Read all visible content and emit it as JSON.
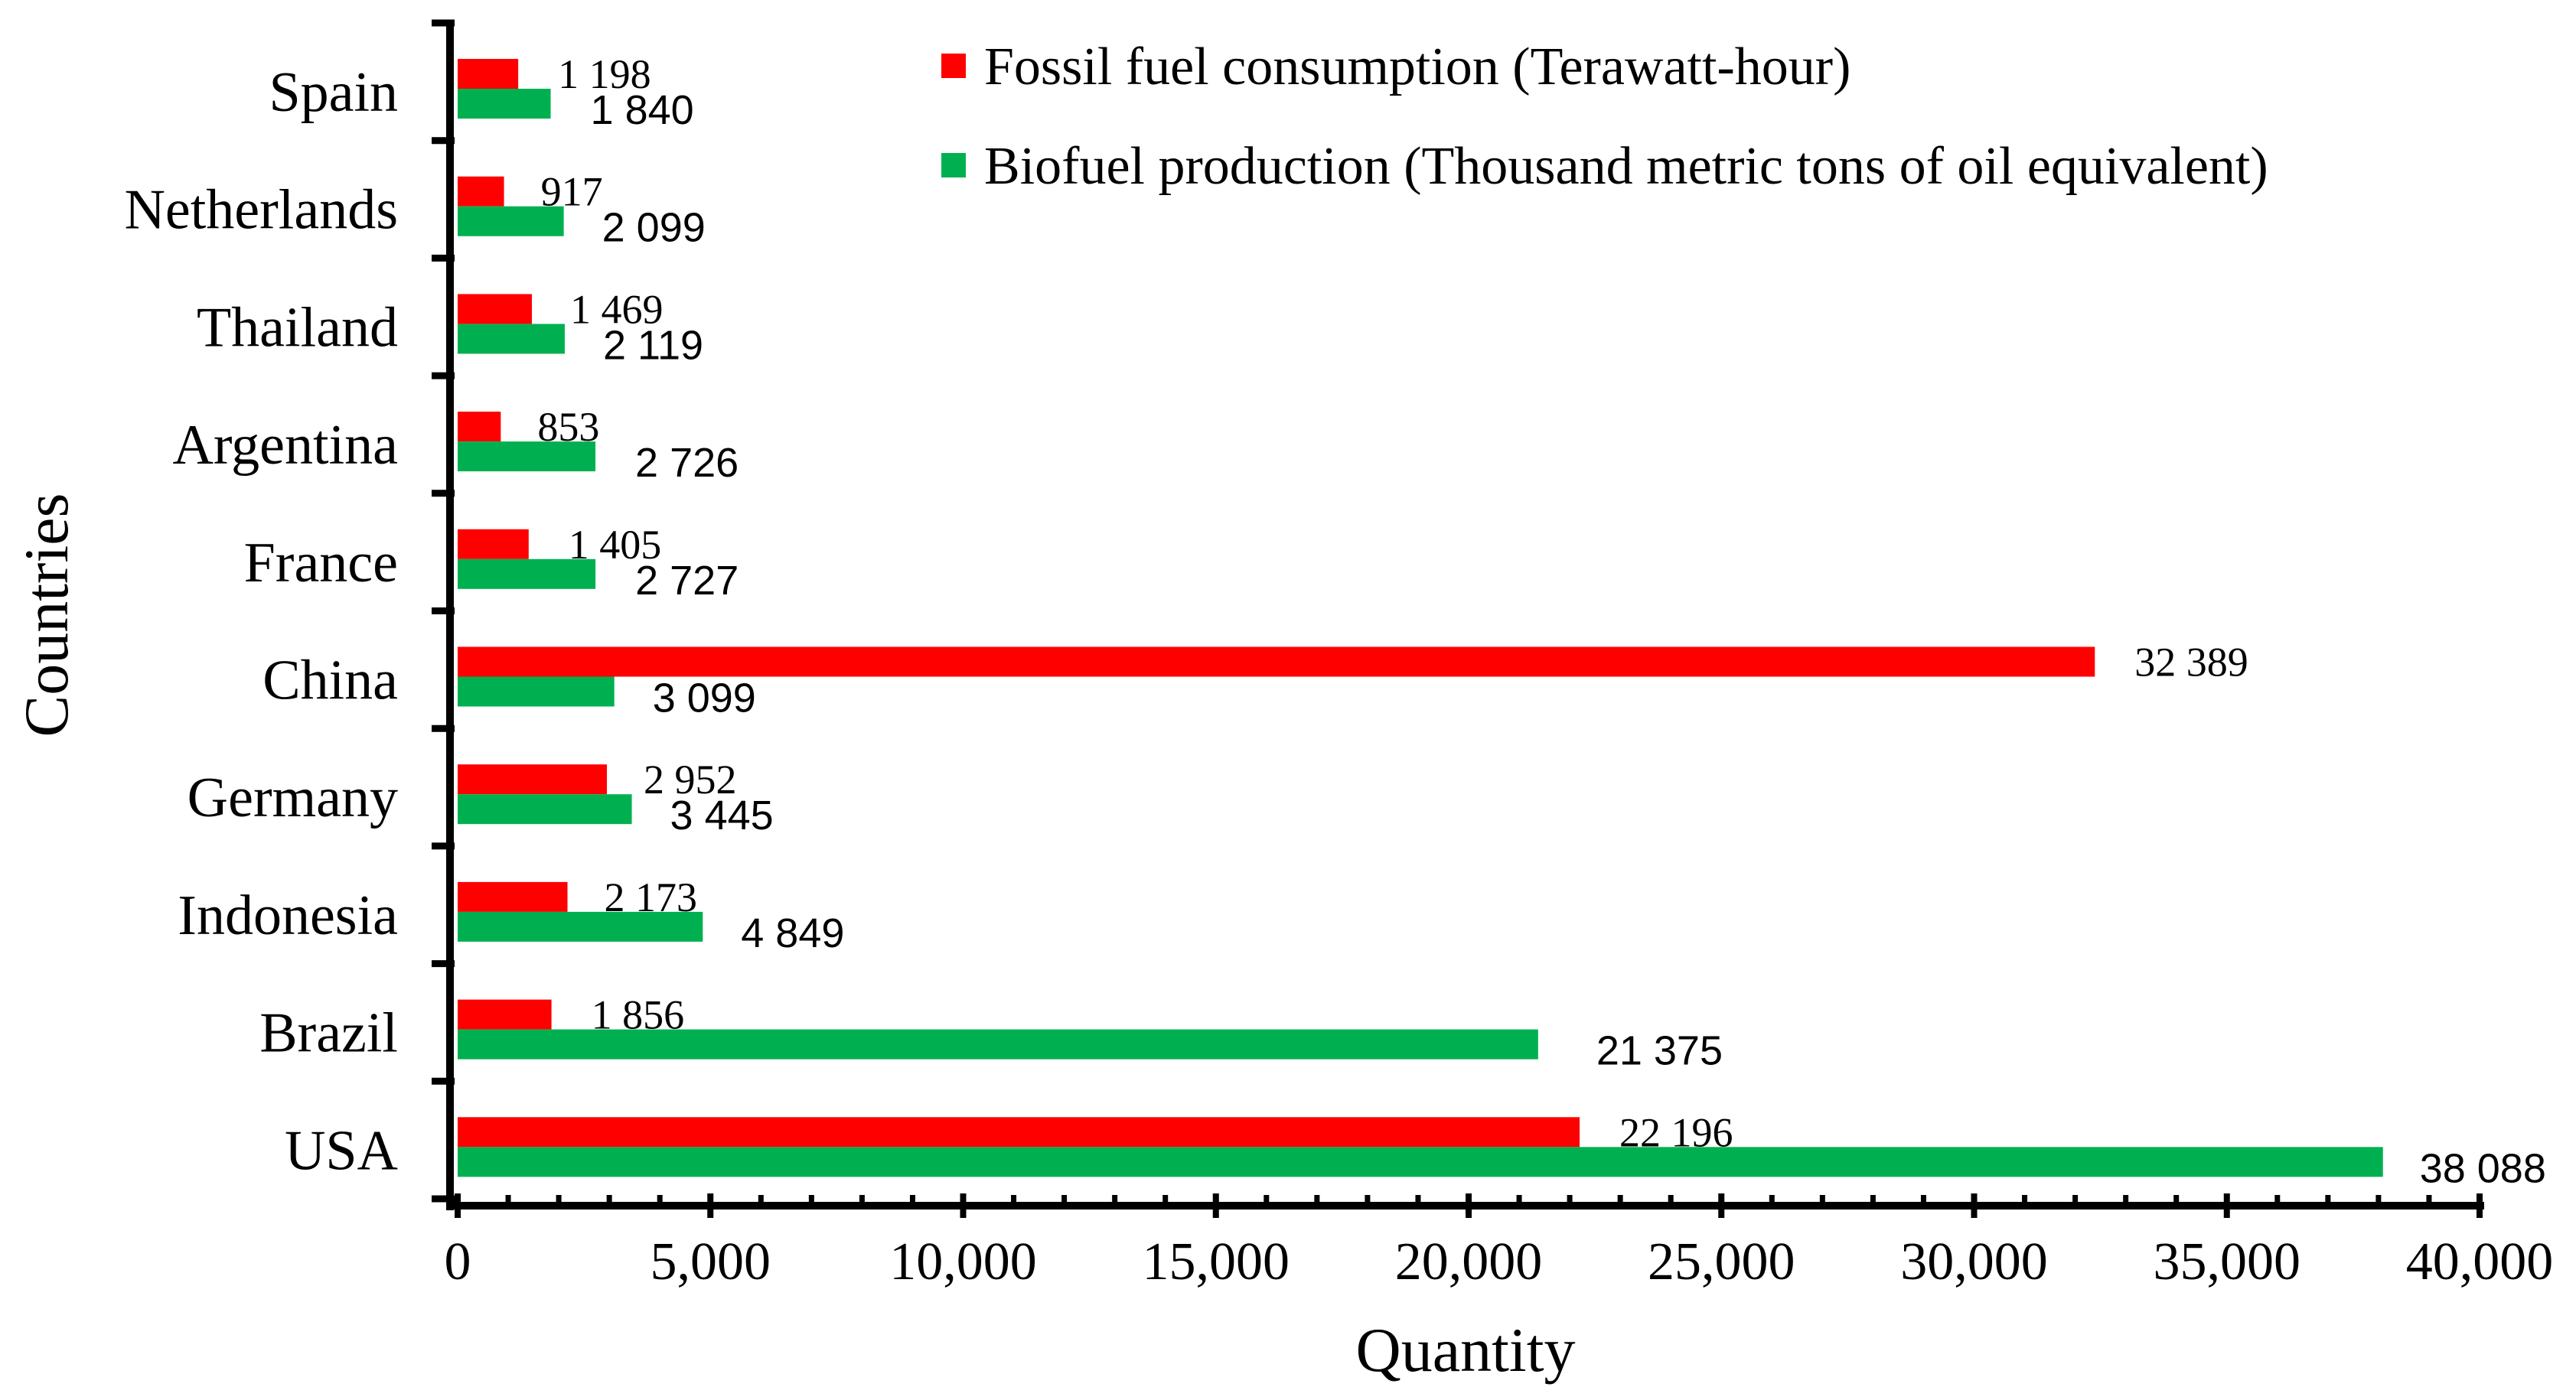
{
  "chart_data": {
    "type": "bar",
    "orientation": "horizontal",
    "title": "",
    "xlabel": "Quantity",
    "ylabel": "Countries",
    "xlim": [
      0,
      40000
    ],
    "x_ticks": [
      0,
      5000,
      10000,
      15000,
      20000,
      25000,
      30000,
      35000,
      40000
    ],
    "x_tick_labels": [
      "0",
      "5,000",
      "10,000",
      "15,000",
      "20,000",
      "25,000",
      "30,000",
      "35,000",
      "40,000"
    ],
    "categories": [
      "Spain",
      "Netherlands",
      "Thailand",
      "Argentina",
      "France",
      "China",
      "Germany",
      "Indonesia",
      "Brazil",
      "USA"
    ],
    "series": [
      {
        "name": "Fossil fuel consumption (Terawatt-hour)",
        "color": "#ff0000",
        "values": [
          1198,
          917,
          1469,
          853,
          1405,
          32389,
          2952,
          2173,
          1856,
          22196
        ],
        "labels": [
          "1 198",
          "917",
          "1 469",
          "853",
          "1 405",
          "32 389",
          "2 952",
          "2 173",
          "1 856",
          "22 196"
        ]
      },
      {
        "name": "Biofuel production (Thousand metric tons of oil equivalent)",
        "color": "#00b050",
        "values": [
          1840,
          2099,
          2119,
          2726,
          2727,
          3099,
          3445,
          4849,
          21375,
          38088
        ],
        "labels": [
          "1 840",
          "2 099",
          "2 119",
          "2 726",
          "2 727",
          "3 099",
          "3 445",
          "4 849",
          "21 375",
          "38 088"
        ]
      }
    ],
    "grid": false,
    "legend_position": "top-right"
  }
}
